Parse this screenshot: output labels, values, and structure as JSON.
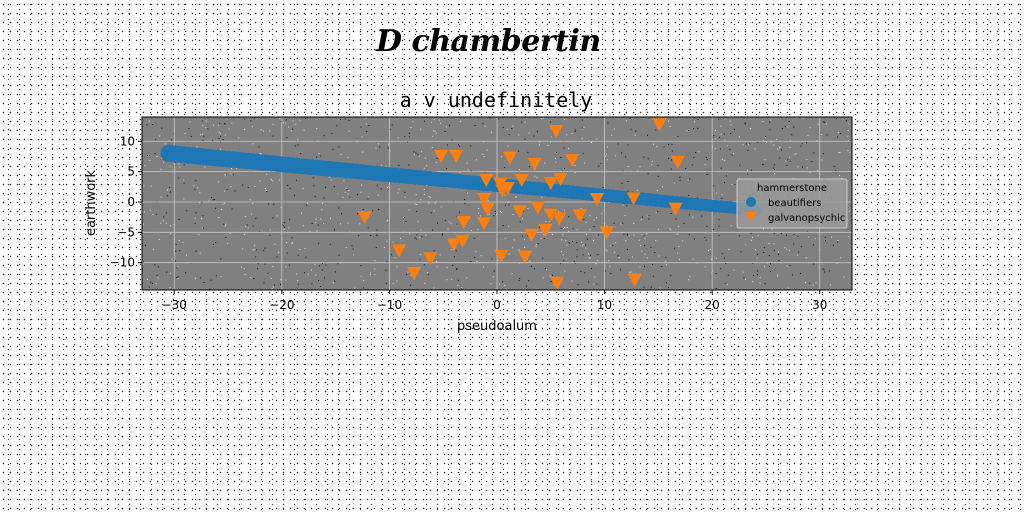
{
  "figure_title": "D chambertin",
  "chart_data": {
    "type": "scatter",
    "title": "a v undefinitely",
    "xlabel": "pseudoalum",
    "ylabel": "earthwork",
    "xlim": [
      -33,
      33
    ],
    "ylim": [
      -14.5,
      14
    ],
    "xticks": [
      -30,
      -20,
      -10,
      0,
      10,
      20,
      30
    ],
    "yticks": [
      -10,
      -5,
      0,
      5,
      10
    ],
    "grid": true,
    "legend": {
      "title": "hammerstone",
      "placement": "right"
    },
    "background": "#808080",
    "series": [
      {
        "name": "beautifiers",
        "marker": "circle",
        "color": "#1f77b4",
        "line": {
          "x_start": -30.5,
          "y_start": 8.0,
          "x_end": 24.0,
          "y_end": -1.3,
          "count": 120
        }
      },
      {
        "name": "galvanopsychic",
        "marker": "triangle-down",
        "color": "#ff7f0e",
        "x": [
          5.5,
          15.1,
          -5.2,
          -3.8,
          1.2,
          7.0,
          3.5,
          16.8,
          5.9,
          5.0,
          2.3,
          0.3,
          -1.0,
          1.0,
          0.5,
          -1.2,
          9.3,
          12.7,
          16.6,
          -0.9,
          2.1,
          3.8,
          5.0,
          5.8,
          7.7,
          -12.3,
          -3.1,
          -1.2,
          4.5,
          3.2,
          10.2,
          -3.2,
          -4.0,
          -9.1,
          -6.2,
          0.4,
          2.6,
          -7.7,
          12.8,
          5.6
        ],
        "y": [
          11.7,
          12.8,
          7.6,
          7.6,
          7.3,
          6.9,
          6.3,
          6.6,
          3.8,
          3.1,
          3.6,
          3.0,
          3.6,
          2.3,
          1.9,
          0.5,
          0.5,
          0.6,
          -1.1,
          -1.2,
          -1.5,
          -0.9,
          -2.1,
          -2.7,
          -2.2,
          -2.5,
          -3.3,
          -3.5,
          -4.6,
          -5.4,
          -5.0,
          -6.4,
          -7.0,
          -8.0,
          -9.3,
          -8.9,
          -9.0,
          -11.7,
          -12.8,
          -13.3
        ]
      }
    ]
  }
}
